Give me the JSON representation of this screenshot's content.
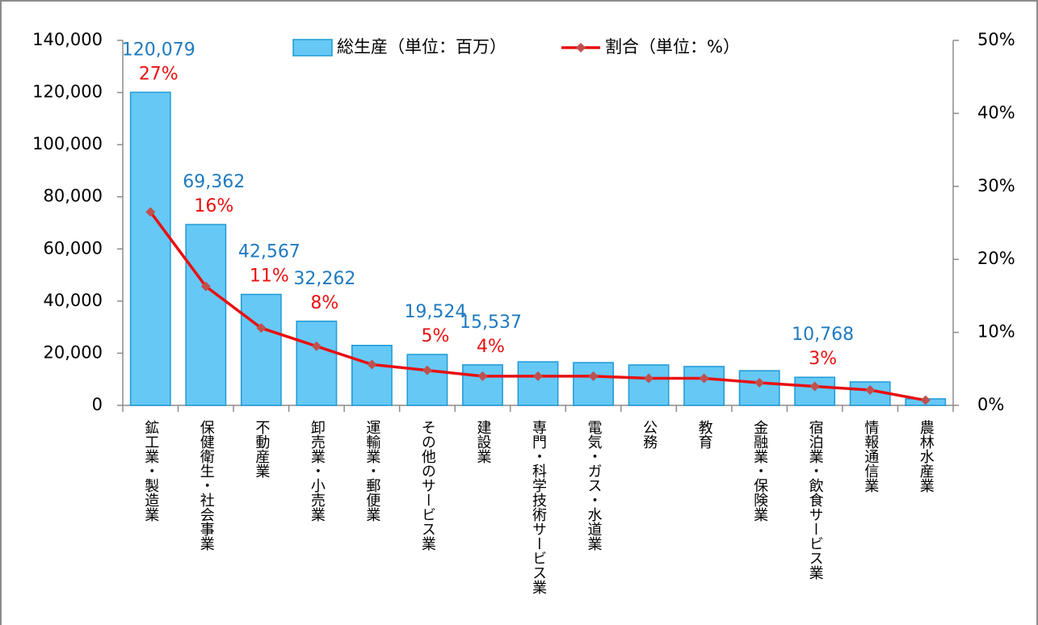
{
  "chart_data": {
    "type": "bar-line",
    "categories": [
      "鉱工業・製造業",
      "保健衛生・社会事業",
      "不動産業",
      "卸売業・小売業",
      "運輸業・郵便業",
      "その他のサービス業",
      "建設業",
      "専門・科学技術サービス業",
      "電気・ガス・水道業",
      "公務",
      "教育",
      "金融業・保険業",
      "宿泊業・飲食サービス業",
      "情報通信業",
      "農林水産業"
    ],
    "series": [
      {
        "name": "総生産（単位：百万）",
        "type": "bar",
        "color": "#66c8f5",
        "edge": "#1f9ad6",
        "label_color": "#1f7ac0",
        "values": [
          120079,
          69362,
          42567,
          32262,
          23000,
          19524,
          15537,
          16700,
          16400,
          15500,
          14900,
          13300,
          10768,
          9000,
          2500
        ],
        "value_labels": [
          "120,079",
          "69,362",
          "42,567",
          "32,262",
          null,
          "19,524",
          "15,537",
          null,
          null,
          null,
          null,
          null,
          "10,768",
          null,
          null
        ]
      },
      {
        "name": "割合（単位：%）",
        "type": "line",
        "axis": "y2",
        "color": "#e81010",
        "marker_color": "#c0504d",
        "label_color": "#e81010",
        "values": [
          26.5,
          16.3,
          10.6,
          8.1,
          5.6,
          4.8,
          4.0,
          4.0,
          4.0,
          3.7,
          3.7,
          3.1,
          2.6,
          2.1,
          0.7
        ],
        "value_labels": [
          "27%",
          "16%",
          "11%",
          "8%",
          null,
          "5%",
          "4%",
          null,
          null,
          null,
          null,
          null,
          "3%",
          null,
          null
        ]
      }
    ],
    "ylim": [
      0,
      140000
    ],
    "yticks": [
      0,
      {
        "value": 20000,
        "label": "20,000"
      },
      {
        "value": 40000,
        "label": "40,000"
      },
      {
        "value": 60000,
        "label": "60,000"
      },
      {
        "value": 80000,
        "label": "80,000"
      },
      {
        "value": 100000,
        "label": "100,000"
      },
      {
        "value": 120000,
        "label": "120,000"
      },
      {
        "value": 140000,
        "label": "140,000"
      }
    ],
    "y2lim": [
      0,
      50
    ],
    "y2ticks": [
      {
        "value": 0,
        "label": "0%"
      },
      {
        "value": 10,
        "label": "10%"
      },
      {
        "value": 20,
        "label": "20%"
      },
      {
        "value": 30,
        "label": "30%"
      },
      {
        "value": 40,
        "label": "40%"
      },
      {
        "value": 50,
        "label": "50%"
      }
    ],
    "grid": false,
    "legend": "top"
  }
}
